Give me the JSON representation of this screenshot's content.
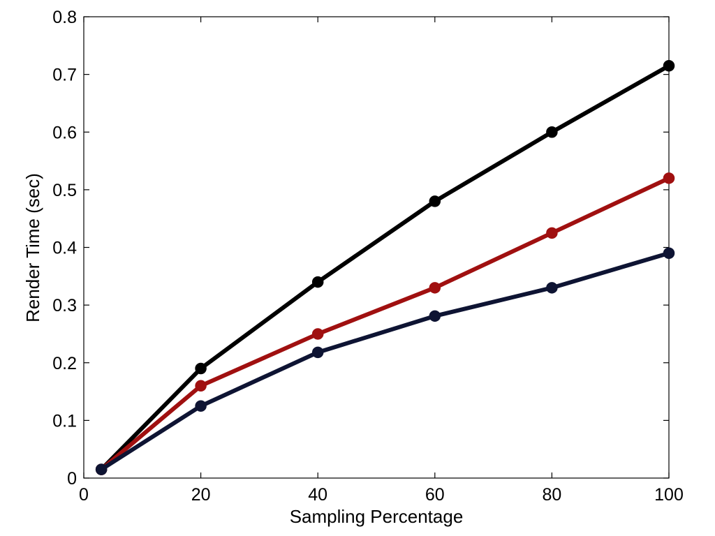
{
  "chart_data": {
    "type": "line",
    "title": "",
    "xlabel": "Sampling Percentage",
    "ylabel": "Render Time (sec)",
    "xlim": [
      0,
      100
    ],
    "ylim": [
      0,
      0.8
    ],
    "xticks": [
      0,
      20,
      40,
      60,
      80,
      100
    ],
    "yticks": [
      0,
      0.1,
      0.2,
      0.3,
      0.4,
      0.5,
      0.6,
      0.7,
      0.8
    ],
    "xtick_labels": [
      "0",
      "20",
      "40",
      "60",
      "80",
      "100"
    ],
    "ytick_labels": [
      "0",
      "0.1",
      "0.2",
      "0.3",
      "0.4",
      "0.5",
      "0.6",
      "0.7",
      "0.8"
    ],
    "grid": false,
    "legend": "none",
    "x": [
      3,
      20,
      40,
      60,
      80,
      100
    ],
    "series": [
      {
        "color": "#000000",
        "values": [
          0.015,
          0.19,
          0.34,
          0.48,
          0.6,
          0.715
        ]
      },
      {
        "color": "#a01010",
        "values": [
          0.015,
          0.16,
          0.25,
          0.33,
          0.425,
          0.52
        ]
      },
      {
        "color": "#0e1433",
        "values": [
          0.015,
          0.125,
          0.218,
          0.281,
          0.33,
          0.39
        ]
      }
    ]
  }
}
